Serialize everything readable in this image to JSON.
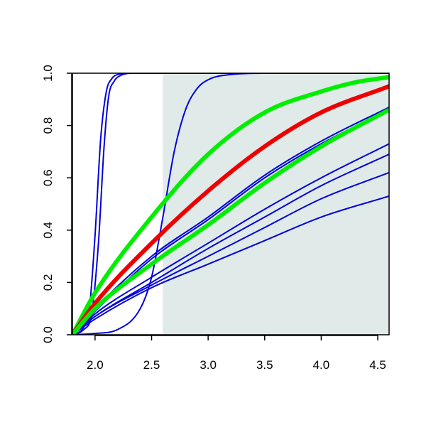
{
  "chart_data": {
    "type": "line",
    "title": "",
    "xlabel": "",
    "ylabel": "",
    "xlim": [
      1.8,
      4.6
    ],
    "ylim": [
      0.0,
      1.0
    ],
    "x_ticks": [
      "2.0",
      "2.5",
      "3.0",
      "3.5",
      "4.0",
      "4.5"
    ],
    "y_ticks": [
      "0.0",
      "0.2",
      "0.4",
      "0.6",
      "0.8",
      "1.0"
    ],
    "grid": false,
    "legend": "none",
    "shaded_region": {
      "x_from": 2.6,
      "x_to": 4.6,
      "color": "#dfeae9"
    },
    "series": [
      {
        "color": "#0000dd",
        "width": "thin",
        "x": [
          1.8,
          1.9,
          1.95,
          2.0,
          2.05,
          2.1,
          2.15,
          2.2,
          2.3,
          2.5,
          3.0,
          4.6
        ],
        "y": [
          0.0,
          0.03,
          0.1,
          0.38,
          0.75,
          0.93,
          0.98,
          0.995,
          1.0,
          1.0,
          1.0,
          1.0
        ]
      },
      {
        "color": "#0000dd",
        "width": "thin",
        "x": [
          1.8,
          1.9,
          1.97,
          2.03,
          2.08,
          2.12,
          2.17,
          2.22,
          2.32,
          2.5,
          3.0,
          4.6
        ],
        "y": [
          0.0,
          0.02,
          0.08,
          0.35,
          0.72,
          0.91,
          0.97,
          0.99,
          1.0,
          1.0,
          1.0,
          1.0
        ]
      },
      {
        "color": "#0000dd",
        "width": "thin",
        "x": [
          1.8,
          2.0,
          2.2,
          2.4,
          2.5,
          2.6,
          2.7,
          2.8,
          2.9,
          3.0,
          3.2,
          3.5,
          4.6
        ],
        "y": [
          0.0,
          0.005,
          0.02,
          0.1,
          0.22,
          0.45,
          0.7,
          0.86,
          0.94,
          0.975,
          0.995,
          1.0,
          1.0
        ]
      },
      {
        "color": "#0000dd",
        "width": "thin",
        "x": [
          1.8,
          2.0,
          2.5,
          3.0,
          3.5,
          4.0,
          4.6
        ],
        "y": [
          0.0,
          0.1,
          0.3,
          0.45,
          0.61,
          0.74,
          0.87
        ]
      },
      {
        "color": "#0000dd",
        "width": "thin",
        "x": [
          1.8,
          2.0,
          2.5,
          3.0,
          3.5,
          4.0,
          4.6
        ],
        "y": [
          0.0,
          0.09,
          0.29,
          0.44,
          0.6,
          0.73,
          0.86
        ]
      },
      {
        "color": "#0000dd",
        "width": "thin",
        "x": [
          1.8,
          2.0,
          2.5,
          3.0,
          3.5,
          4.0,
          4.6
        ],
        "y": [
          0.0,
          0.08,
          0.22,
          0.35,
          0.48,
          0.6,
          0.73
        ]
      },
      {
        "color": "#0000dd",
        "width": "thin",
        "x": [
          1.8,
          2.0,
          2.5,
          3.0,
          3.5,
          4.0,
          4.6
        ],
        "y": [
          0.0,
          0.07,
          0.2,
          0.33,
          0.45,
          0.57,
          0.69
        ]
      },
      {
        "color": "#0000dd",
        "width": "thin",
        "x": [
          1.8,
          2.0,
          2.5,
          3.0,
          3.5,
          4.0,
          4.6
        ],
        "y": [
          0.0,
          0.07,
          0.19,
          0.3,
          0.41,
          0.52,
          0.62
        ]
      },
      {
        "color": "#0000dd",
        "width": "thin",
        "x": [
          1.8,
          2.0,
          2.5,
          3.0,
          3.5,
          4.0,
          4.6
        ],
        "y": [
          0.0,
          0.06,
          0.18,
          0.27,
          0.36,
          0.45,
          0.53
        ]
      },
      {
        "color": "#00ee00",
        "width": "thick",
        "x": [
          1.8,
          2.0,
          2.5,
          3.0,
          3.5,
          4.0,
          4.3,
          4.6
        ],
        "y": [
          0.0,
          0.16,
          0.45,
          0.69,
          0.85,
          0.93,
          0.965,
          0.985
        ]
      },
      {
        "color": "#ee0000",
        "width": "thick",
        "x": [
          1.8,
          2.0,
          2.5,
          3.0,
          3.5,
          4.0,
          4.6
        ],
        "y": [
          0.0,
          0.12,
          0.35,
          0.55,
          0.72,
          0.85,
          0.95
        ]
      },
      {
        "color": "#00ee00",
        "width": "thick",
        "x": [
          1.8,
          2.0,
          2.5,
          3.0,
          3.5,
          4.0,
          4.6
        ],
        "y": [
          0.0,
          0.1,
          0.27,
          0.42,
          0.58,
          0.72,
          0.86
        ]
      }
    ]
  }
}
